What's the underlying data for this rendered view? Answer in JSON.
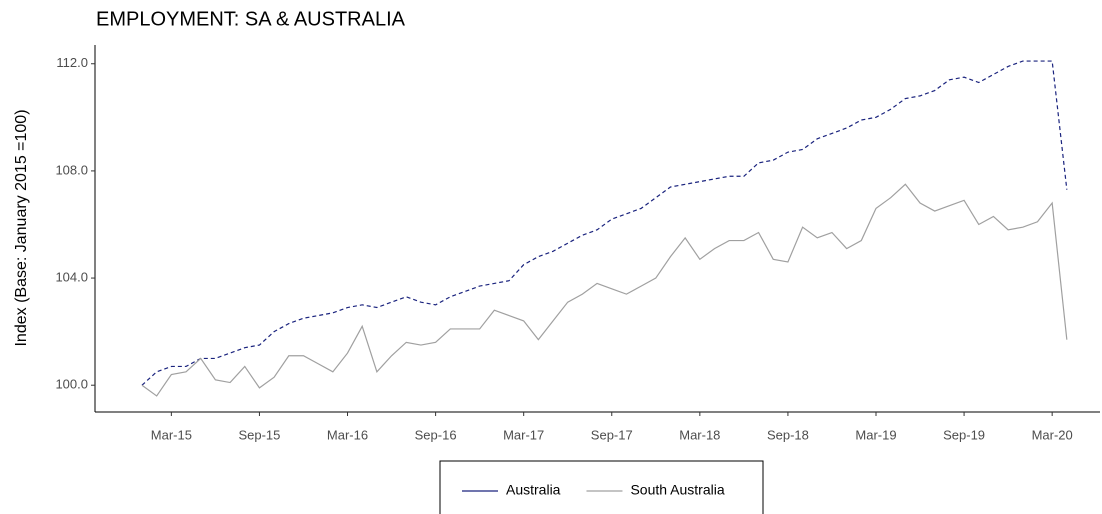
{
  "chart_data": {
    "type": "line",
    "title": "EMPLOYMENT: SA & AUSTRALIA",
    "y_label": "Index (Base: January 2015 =100)",
    "categories": [
      null,
      null,
      "Mar-15",
      null,
      null,
      null,
      null,
      null,
      "Sep-15",
      null,
      null,
      null,
      null,
      null,
      "Mar-16",
      null,
      null,
      null,
      null,
      null,
      "Sep-16",
      null,
      null,
      null,
      null,
      null,
      "Mar-17",
      null,
      null,
      null,
      null,
      null,
      "Sep-17",
      null,
      null,
      null,
      null,
      null,
      "Mar-18",
      null,
      null,
      null,
      null,
      null,
      "Sep-18",
      null,
      null,
      null,
      null,
      null,
      "Mar-19",
      null,
      null,
      null,
      null,
      null,
      "Sep-19",
      null,
      null,
      null,
      null,
      null,
      "Mar-20",
      null
    ],
    "series": [
      {
        "name": "Australia",
        "color": "#1a237e",
        "dashed": true,
        "values": [
          100.0,
          100.5,
          100.7,
          100.7,
          101.0,
          101.0,
          101.2,
          101.4,
          101.5,
          102.0,
          102.3,
          102.5,
          102.6,
          102.7,
          102.9,
          103.0,
          102.9,
          103.1,
          103.3,
          103.1,
          103.0,
          103.3,
          103.5,
          103.7,
          103.8,
          103.9,
          104.5,
          104.8,
          105.0,
          105.3,
          105.6,
          105.8,
          106.2,
          106.4,
          106.6,
          107.0,
          107.4,
          107.5,
          107.6,
          107.7,
          107.8,
          107.8,
          108.3,
          108.4,
          108.7,
          108.8,
          109.2,
          109.4,
          109.6,
          109.9,
          110.0,
          110.3,
          110.7,
          110.8,
          111.0,
          111.4,
          111.5,
          111.3,
          111.6,
          111.9,
          112.1,
          112.1,
          112.1,
          107.3
        ]
      },
      {
        "name": "South Australia",
        "color": "#a0a0a0",
        "dashed": false,
        "values": [
          100.0,
          99.6,
          100.4,
          100.5,
          101.0,
          100.2,
          100.1,
          100.7,
          99.9,
          100.3,
          101.1,
          101.1,
          100.8,
          100.5,
          101.2,
          102.2,
          100.5,
          101.1,
          101.6,
          101.5,
          101.6,
          102.1,
          102.1,
          102.1,
          102.8,
          102.6,
          102.4,
          101.7,
          102.4,
          103.1,
          103.4,
          103.8,
          103.6,
          103.4,
          103.7,
          104.0,
          104.8,
          105.5,
          104.7,
          105.1,
          105.4,
          105.4,
          105.7,
          104.7,
          104.6,
          105.9,
          105.5,
          105.7,
          105.1,
          105.4,
          106.6,
          107.0,
          107.5,
          106.8,
          106.5,
          106.7,
          106.9,
          106.0,
          106.3,
          105.8,
          105.9,
          106.1,
          106.8,
          101.7
        ]
      }
    ],
    "ylim": [
      99.0,
      112.7
    ],
    "yticks": [
      {
        "value": 100,
        "label": "100.0"
      },
      {
        "value": 104,
        "label": "104.0"
      },
      {
        "value": 108,
        "label": "108.0"
      },
      {
        "value": 112,
        "label": "112.0"
      }
    ],
    "grid": false,
    "legend": "bottom"
  }
}
